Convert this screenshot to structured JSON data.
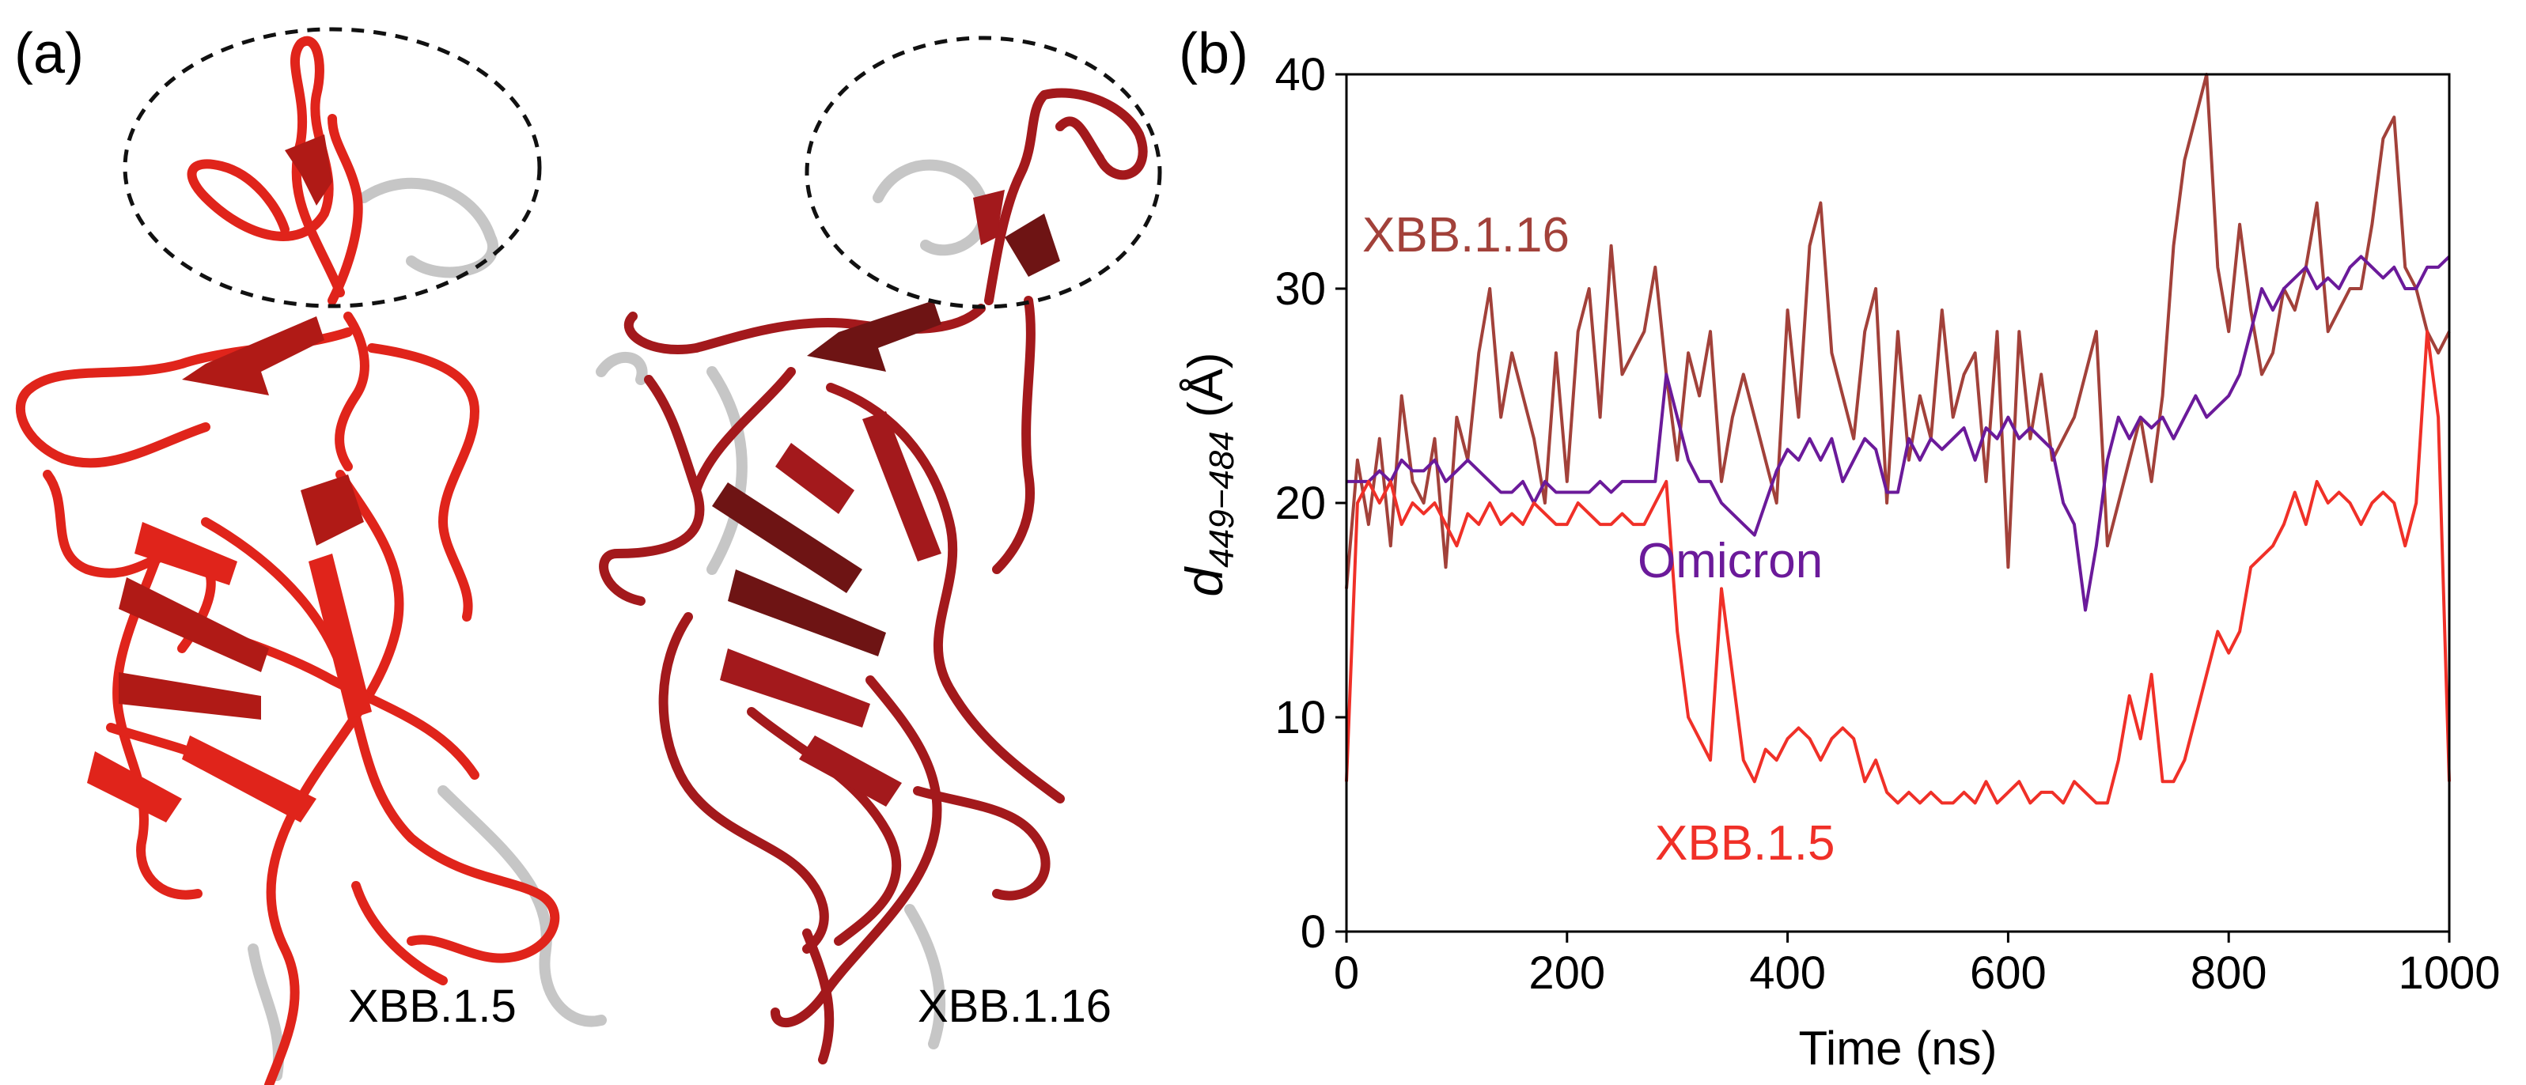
{
  "panel_a": {
    "label": "(a)",
    "structures": [
      {
        "label": "XBB.1.5",
        "color": "#e0241b"
      },
      {
        "label": "XBB.1.16",
        "color": "#a3191c"
      }
    ]
  },
  "panel_b": {
    "label": "(b)"
  },
  "chart_data": {
    "type": "line",
    "title": "",
    "xlabel": "Time (ns)",
    "ylabel_main": "d",
    "ylabel_sub": "449−484",
    "ylabel_unit": " (Å)",
    "xlim": [
      0,
      1000
    ],
    "ylim": [
      0,
      40
    ],
    "xticks": [
      0,
      200,
      400,
      600,
      800,
      1000
    ],
    "yticks": [
      0,
      10,
      20,
      30,
      40
    ],
    "grid": false,
    "x_step": 10,
    "series": [
      {
        "name": "XBB.1.16",
        "color": "#a2413a",
        "values": [
          16,
          22,
          19,
          23,
          18,
          25,
          21,
          20,
          23,
          17,
          24,
          22,
          27,
          30,
          24,
          27,
          25,
          23,
          20,
          27,
          21,
          28,
          30,
          24,
          32,
          26,
          27,
          28,
          31,
          26,
          22,
          27,
          25,
          28,
          21,
          24,
          26,
          24,
          22,
          20,
          29,
          24,
          32,
          34,
          27,
          25,
          23,
          28,
          30,
          20,
          28,
          22,
          25,
          23,
          29,
          24,
          26,
          27,
          21,
          28,
          17,
          28,
          23,
          26,
          22,
          23,
          24,
          26,
          28,
          18,
          20,
          22,
          24,
          21,
          25,
          32,
          36,
          38,
          40,
          31,
          28,
          33,
          29,
          26,
          27,
          30,
          29,
          31,
          34,
          28,
          29,
          30,
          30,
          33,
          37,
          38,
          31,
          30,
          28,
          27,
          28
        ]
      },
      {
        "name": "Omicron",
        "color": "#6b1a9a",
        "values": [
          21,
          21,
          21,
          21.5,
          21,
          22,
          21.5,
          21.5,
          22,
          21,
          21.5,
          22,
          21.5,
          21,
          20.5,
          20.5,
          21,
          20,
          21,
          20.5,
          20.5,
          20.5,
          20.5,
          21,
          20.5,
          21,
          21,
          21,
          21,
          26,
          24,
          22,
          21,
          21,
          20,
          19.5,
          19,
          18.5,
          20,
          21.5,
          22.5,
          22,
          23,
          22,
          23,
          21,
          22,
          23,
          22.5,
          20.5,
          20.5,
          23,
          22,
          23,
          22.5,
          23,
          23.5,
          22,
          23.5,
          23,
          24,
          23,
          23.5,
          23,
          22.5,
          20,
          19,
          15,
          18,
          22,
          24,
          23,
          24,
          23.5,
          24,
          23,
          24,
          25,
          24,
          24.5,
          25,
          26,
          28,
          30,
          29,
          30,
          30.5,
          31,
          30,
          30.5,
          30,
          31,
          31.5,
          31,
          30.5,
          31,
          30,
          30,
          31,
          31,
          31.5
        ]
      },
      {
        "name": "XBB.1.5",
        "color": "#f03028",
        "values": [
          7,
          20,
          21,
          20,
          21,
          19,
          20,
          19.5,
          20,
          19,
          18,
          19.5,
          19,
          20,
          19,
          19.5,
          19,
          20,
          19.5,
          19,
          19,
          20,
          19.5,
          19,
          19,
          19.5,
          19,
          19,
          20,
          21,
          14,
          10,
          9,
          8,
          16,
          12,
          8,
          7,
          8.5,
          8,
          9,
          9.5,
          9,
          8,
          9,
          9.5,
          9,
          7,
          8,
          6.5,
          6,
          6.5,
          6,
          6.5,
          6,
          6,
          6.5,
          6,
          7,
          6,
          6.5,
          7,
          6,
          6.5,
          6.5,
          6,
          7,
          6.5,
          6,
          6,
          8,
          11,
          9,
          12,
          7,
          7,
          8,
          10,
          12,
          14,
          13,
          14,
          17,
          17.5,
          18,
          19,
          20.5,
          19,
          21,
          20,
          20.5,
          20,
          19,
          20,
          20.5,
          20,
          18,
          20,
          28,
          24,
          7
        ]
      }
    ],
    "series_labels": [
      {
        "text": "XBB.1.16",
        "color": "#a2413a"
      },
      {
        "text": "Omicron",
        "color": "#6b1a9a"
      },
      {
        "text": "XBB.1.5",
        "color": "#f03028"
      }
    ]
  }
}
